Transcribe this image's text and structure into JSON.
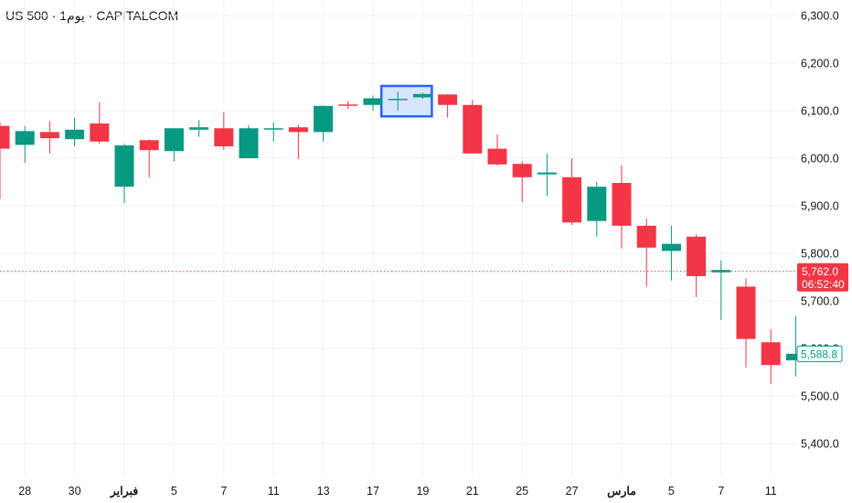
{
  "header": {
    "symbol": "US 500",
    "sep1": " · ",
    "interval": "1يوم",
    "sep2": " · ",
    "source": "CAPITALCOM"
  },
  "colors": {
    "up": "#089981",
    "down": "#f23645",
    "grid": "#f0f3fa",
    "text": "#131722",
    "price_line": "#f23645",
    "highlight_fill": "#d6e6ff",
    "highlight_border": "#2962ff"
  },
  "last_price": {
    "value": 5762.0,
    "value_label": "5,762.0",
    "countdown": "06:52:40"
  },
  "current_price": {
    "value": 5588.8,
    "value_label": "5,588.8"
  },
  "highlight": {
    "candle_indices": [
      16,
      17
    ],
    "label": "selected range"
  },
  "chart_data": {
    "type": "candlestick",
    "title": "",
    "xlabel": "",
    "ylabel": "",
    "ylim": [
      5350,
      6320
    ],
    "yticks": [
      5400,
      5500,
      5600,
      5700,
      5800,
      5900,
      6000,
      6100,
      6200,
      6300
    ],
    "ytick_labels": [
      "5,400.0",
      "5,500.0",
      "5,600.0",
      "5,700.0",
      "5,800.0",
      "5,900.0",
      "6,000.0",
      "6,100.0",
      "6,200.0",
      "6,300.0"
    ],
    "xticks": [
      {
        "label": "28",
        "index": 1
      },
      {
        "label": "30",
        "index": 3
      },
      {
        "label": "فبراير",
        "index": 5,
        "bold": true
      },
      {
        "label": "5",
        "index": 7
      },
      {
        "label": "7",
        "index": 9
      },
      {
        "label": "11",
        "index": 11
      },
      {
        "label": "13",
        "index": 13
      },
      {
        "label": "17",
        "index": 15
      },
      {
        "label": "19",
        "index": 17
      },
      {
        "label": "21",
        "index": 19
      },
      {
        "label": "25",
        "index": 21
      },
      {
        "label": "27",
        "index": 23
      },
      {
        "label": "مارس",
        "index": 25,
        "bold": true
      },
      {
        "label": "5",
        "index": 27
      },
      {
        "label": "7",
        "index": 29
      },
      {
        "label": "11",
        "index": 31
      }
    ],
    "candles": [
      {
        "o": 6068,
        "h": 6075,
        "l": 5915,
        "c": 6020
      },
      {
        "o": 6028,
        "h": 6068,
        "l": 5990,
        "c": 6057
      },
      {
        "o": 6055,
        "h": 6078,
        "l": 6010,
        "c": 6042
      },
      {
        "o": 6040,
        "h": 6085,
        "l": 6025,
        "c": 6060
      },
      {
        "o": 6073,
        "h": 6118,
        "l": 6030,
        "c": 6035
      },
      {
        "o": 5940,
        "h": 6030,
        "l": 5905,
        "c": 6027
      },
      {
        "o": 6038,
        "h": 6040,
        "l": 5960,
        "c": 6017
      },
      {
        "o": 6015,
        "h": 6063,
        "l": 5993,
        "c": 6063
      },
      {
        "o": 6060,
        "h": 6080,
        "l": 6045,
        "c": 6065
      },
      {
        "o": 6063,
        "h": 6096,
        "l": 6018,
        "c": 6025
      },
      {
        "o": 6000,
        "h": 6070,
        "l": 6000,
        "c": 6063
      },
      {
        "o": 6063,
        "h": 6075,
        "l": 6035,
        "c": 6063
      },
      {
        "o": 6065,
        "h": 6070,
        "l": 5998,
        "c": 6055
      },
      {
        "o": 6055,
        "h": 6111,
        "l": 6035,
        "c": 6110
      },
      {
        "o": 6113,
        "h": 6120,
        "l": 6103,
        "c": 6112
      },
      {
        "o": 6112,
        "h": 6132,
        "l": 6100,
        "c": 6126
      },
      {
        "o": 6123,
        "h": 6140,
        "l": 6100,
        "c": 6125
      },
      {
        "o": 6128,
        "h": 6138,
        "l": 6125,
        "c": 6135
      },
      {
        "o": 6134,
        "h": 6135,
        "l": 6085,
        "c": 6112
      },
      {
        "o": 6112,
        "h": 6123,
        "l": 6010,
        "c": 6010
      },
      {
        "o": 6020,
        "h": 6050,
        "l": 5985,
        "c": 5987
      },
      {
        "o": 5988,
        "h": 5993,
        "l": 5908,
        "c": 5960
      },
      {
        "o": 5966,
        "h": 6010,
        "l": 5920,
        "c": 5970
      },
      {
        "o": 5960,
        "h": 6000,
        "l": 5860,
        "c": 5865
      },
      {
        "o": 5868,
        "h": 5950,
        "l": 5835,
        "c": 5940
      },
      {
        "o": 5948,
        "h": 5985,
        "l": 5810,
        "c": 5858
      },
      {
        "o": 5858,
        "h": 5873,
        "l": 5730,
        "c": 5812
      },
      {
        "o": 5805,
        "h": 5858,
        "l": 5743,
        "c": 5820
      },
      {
        "o": 5835,
        "h": 5840,
        "l": 5708,
        "c": 5752
      },
      {
        "o": 5760,
        "h": 5785,
        "l": 5660,
        "c": 5765
      },
      {
        "o": 5730,
        "h": 5747,
        "l": 5560,
        "c": 5620
      },
      {
        "o": 5613,
        "h": 5640,
        "l": 5525,
        "c": 5565
      },
      {
        "o": 5575,
        "h": 5668,
        "l": 5541,
        "c": 5588.8
      }
    ]
  }
}
